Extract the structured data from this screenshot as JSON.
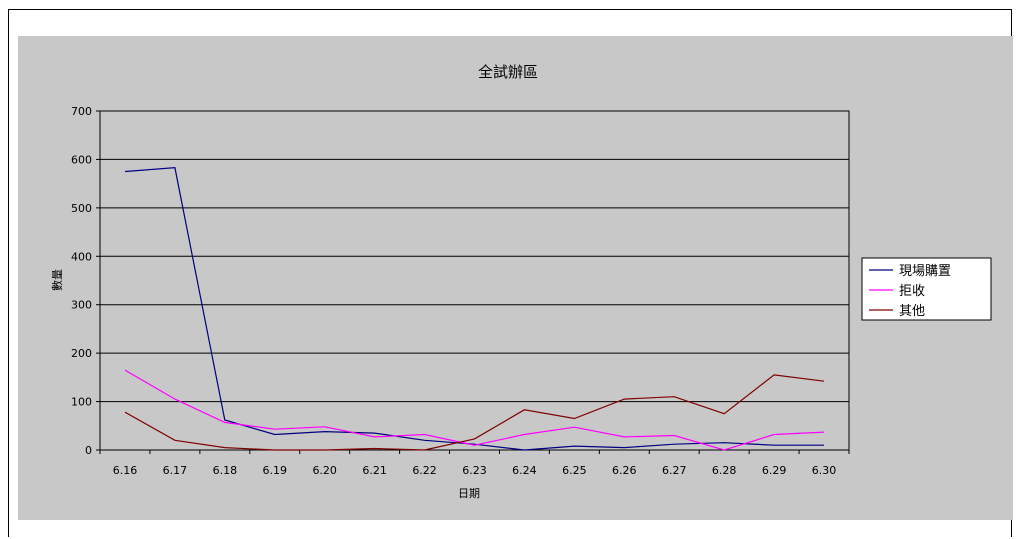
{
  "chart_data": {
    "type": "line",
    "title": "全試辦區",
    "xlabel": "日期",
    "ylabel": "數量",
    "ylim": [
      0,
      700
    ],
    "yticks": [
      0,
      100,
      200,
      300,
      400,
      500,
      600,
      700
    ],
    "grid": true,
    "legend_position": "right",
    "categories": [
      "6.16",
      "6.17",
      "6.18",
      "6.19",
      "6.20",
      "6.21",
      "6.22",
      "6.23",
      "6.24",
      "6.25",
      "6.26",
      "6.27",
      "6.28",
      "6.29",
      "6.30"
    ],
    "series": [
      {
        "name": "現場購置",
        "color": "#000080",
        "values": [
          575,
          583,
          62,
          32,
          38,
          35,
          20,
          12,
          0,
          8,
          5,
          12,
          15,
          10,
          10
        ]
      },
      {
        "name": "拒收",
        "color": "#ff00ff",
        "values": [
          165,
          105,
          57,
          43,
          48,
          27,
          32,
          10,
          32,
          47,
          27,
          30,
          0,
          32,
          37
        ]
      },
      {
        "name": "其他",
        "color": "#800000",
        "values": [
          78,
          20,
          5,
          0,
          0,
          3,
          0,
          23,
          83,
          65,
          105,
          110,
          75,
          155,
          142
        ]
      }
    ]
  }
}
